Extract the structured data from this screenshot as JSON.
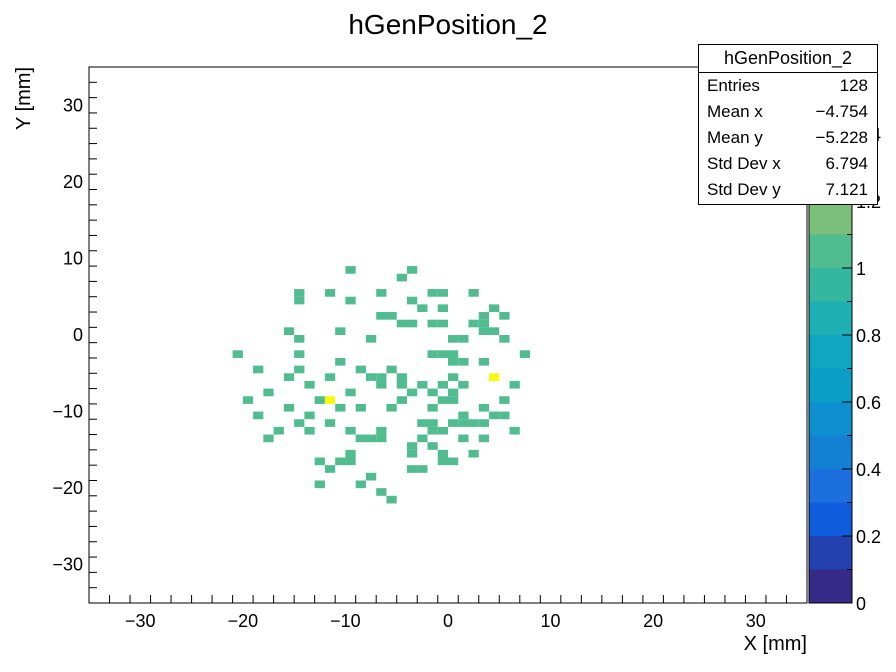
{
  "chart_data": {
    "type": "heatmap",
    "title": "hGenPosition_2",
    "xlabel": "X [mm]",
    "ylabel": "Y [mm]",
    "xlim": [
      -35,
      35
    ],
    "ylim": [
      -35,
      35
    ],
    "zlim": [
      0,
      1.6
    ],
    "bin_size": 1,
    "x_ticks": [
      -30,
      -20,
      -10,
      0,
      10,
      20,
      30
    ],
    "y_ticks": [
      -30,
      -20,
      -10,
      0,
      10,
      20,
      30
    ],
    "z_ticks": [
      0,
      0.2,
      0.4,
      0.6,
      0.8,
      1,
      1.2,
      1.4
    ],
    "cells": [
      [
        -10,
        8,
        1
      ],
      [
        -4,
        8,
        1
      ],
      [
        -5,
        7,
        1
      ],
      [
        -15,
        5,
        1
      ],
      [
        -12,
        5,
        1
      ],
      [
        -7,
        5,
        1
      ],
      [
        -2,
        5,
        1
      ],
      [
        -1,
        5,
        1
      ],
      [
        2,
        5,
        1
      ],
      [
        -15,
        4,
        1
      ],
      [
        -10,
        4,
        1
      ],
      [
        -4,
        4,
        1
      ],
      [
        -3,
        3,
        1
      ],
      [
        -1,
        3,
        1
      ],
      [
        4,
        3,
        1
      ],
      [
        -7,
        2,
        1
      ],
      [
        -6,
        2,
        1
      ],
      [
        3,
        2,
        1
      ],
      [
        5,
        2,
        1
      ],
      [
        -5,
        1,
        1
      ],
      [
        -4,
        1,
        1
      ],
      [
        -2,
        1,
        1
      ],
      [
        -1,
        1,
        1
      ],
      [
        2,
        1,
        1
      ],
      [
        3,
        1,
        1
      ],
      [
        -16,
        0,
        1
      ],
      [
        -11,
        0,
        1
      ],
      [
        3,
        0,
        1
      ],
      [
        4,
        0,
        1
      ],
      [
        -15,
        -1,
        1
      ],
      [
        -8,
        -1,
        1
      ],
      [
        0,
        -1,
        1
      ],
      [
        1,
        -1,
        1
      ],
      [
        5,
        -1,
        1
      ],
      [
        -21,
        -3,
        1
      ],
      [
        -15,
        -3,
        1
      ],
      [
        -2,
        -3,
        1
      ],
      [
        -1,
        -3,
        1
      ],
      [
        0,
        -3,
        1
      ],
      [
        7,
        -3,
        1
      ],
      [
        -11,
        -4,
        1
      ],
      [
        0,
        -4,
        1
      ],
      [
        1,
        -4,
        1
      ],
      [
        3,
        -4,
        1
      ],
      [
        -19,
        -5,
        1
      ],
      [
        -15,
        -5,
        1
      ],
      [
        -9,
        -5,
        1
      ],
      [
        -6,
        -5,
        1
      ],
      [
        -16,
        -6,
        1
      ],
      [
        -12,
        -6,
        1
      ],
      [
        -8,
        -6,
        1
      ],
      [
        -7,
        -6,
        1
      ],
      [
        -5,
        -6,
        1
      ],
      [
        0,
        -6,
        1
      ],
      [
        4,
        -6,
        1.6
      ],
      [
        -7,
        -7,
        1
      ],
      [
        -5,
        -7,
        1
      ],
      [
        -3,
        -7,
        1
      ],
      [
        -1,
        -7,
        1
      ],
      [
        1,
        -7,
        1
      ],
      [
        6,
        -7,
        1
      ],
      [
        -18,
        -8,
        1
      ],
      [
        -10,
        -8,
        1
      ],
      [
        -4,
        -8,
        1
      ],
      [
        -2,
        -8,
        1
      ],
      [
        0,
        -8,
        1
      ],
      [
        -20,
        -9,
        1
      ],
      [
        -13,
        -9,
        1
      ],
      [
        -12,
        -9,
        1.6
      ],
      [
        -5,
        -9,
        1
      ],
      [
        -1,
        -9,
        1
      ],
      [
        0,
        -9,
        1
      ],
      [
        5,
        -9,
        1
      ],
      [
        -16,
        -10,
        1
      ],
      [
        -11,
        -10,
        1
      ],
      [
        -9,
        -10,
        1
      ],
      [
        -6,
        -10,
        1
      ],
      [
        3,
        -10,
        1
      ],
      [
        -19,
        -11,
        1
      ],
      [
        -14,
        -11,
        1
      ],
      [
        1,
        -11,
        1
      ],
      [
        4,
        -11,
        1
      ],
      [
        5,
        -11,
        1
      ],
      [
        -15,
        -12,
        1
      ],
      [
        -12,
        -12,
        1
      ],
      [
        -3,
        -12,
        1
      ],
      [
        -2,
        -12,
        1
      ],
      [
        0,
        -12,
        1
      ],
      [
        1,
        -12,
        1
      ],
      [
        3,
        -12,
        1
      ],
      [
        -17,
        -13,
        1
      ],
      [
        -14,
        -13,
        1
      ],
      [
        -7,
        -13,
        1
      ],
      [
        -2,
        -13,
        1
      ],
      [
        -1,
        -13,
        1
      ],
      [
        6,
        -13,
        1
      ],
      [
        -18,
        -14,
        1
      ],
      [
        -9,
        -14,
        1
      ],
      [
        -8,
        -14,
        1
      ],
      [
        -7,
        -14,
        1
      ],
      [
        -3,
        -14,
        1
      ],
      [
        1,
        -14,
        1
      ],
      [
        3,
        -14,
        1
      ],
      [
        -4,
        -15,
        1
      ],
      [
        -2,
        -15,
        1
      ],
      [
        -4,
        -16,
        1
      ],
      [
        -1,
        -16,
        1
      ],
      [
        2,
        -16,
        1
      ],
      [
        -11,
        -17,
        1
      ],
      [
        -10,
        -17,
        1
      ],
      [
        -13,
        -17,
        1
      ],
      [
        -1,
        -17,
        1
      ],
      [
        0,
        -17,
        1
      ],
      [
        -12,
        -18,
        1
      ],
      [
        -4,
        -18,
        1
      ],
      [
        -3,
        -18,
        1
      ],
      [
        -8,
        -19,
        1
      ],
      [
        -13,
        -20,
        1
      ],
      [
        -9,
        -20,
        1
      ],
      [
        -7,
        -21,
        1
      ],
      [
        -6,
        -22,
        1
      ],
      [
        -10,
        -16,
        1
      ],
      [
        -10,
        -13,
        1
      ],
      [
        -2,
        -10,
        1
      ],
      [
        2,
        -12,
        1
      ],
      [
        -14,
        -7,
        1
      ]
    ]
  },
  "stats_box": {
    "title": "hGenPosition_2",
    "rows": [
      {
        "label": "Entries",
        "value": "128"
      },
      {
        "label": "Mean x",
        "value": "−4.754"
      },
      {
        "label": "Mean y",
        "value": "−5.228"
      },
      {
        "label": "Std Dev x",
        "value": "6.794"
      },
      {
        "label": "Std Dev y",
        "value": "7.121"
      }
    ]
  },
  "palette": {
    "low": "#2b3d9f",
    "mid_low": "#1b6fd6",
    "mid": "#14a6c4",
    "cell": "#4db990",
    "high": "#d6b84e",
    "peak": "#f9f90e"
  }
}
